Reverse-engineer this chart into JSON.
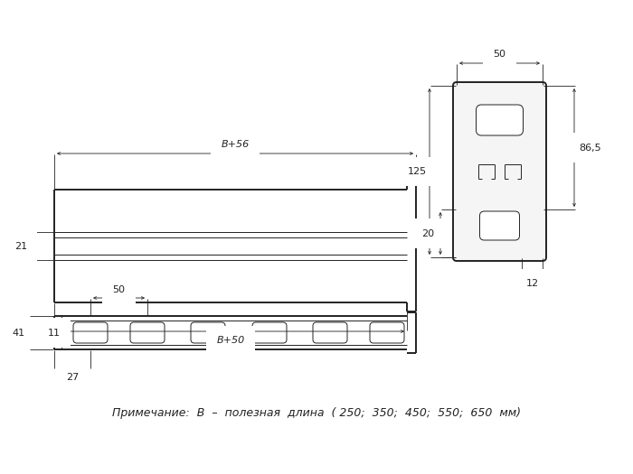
{
  "bg_color": "#ffffff",
  "line_color": "#222222",
  "dim_color": "#222222",
  "thin_lw": 0.7,
  "thick_lw": 1.4,
  "dim_lw": 0.6,
  "note_text": "Примечание:  В  –  полезная  длина  ( 250;  350;  450;  550;  650  мм)",
  "dim_B56": "В+56",
  "dim_B50": "В+50",
  "dim_21": "21",
  "dim_50_top": "50",
  "dim_125": "125",
  "dim_865": "86,5",
  "dim_20": "20",
  "dim_12": "12",
  "dim_50_bot": "50",
  "dim_41": "41",
  "dim_11": "11",
  "dim_27": "27"
}
